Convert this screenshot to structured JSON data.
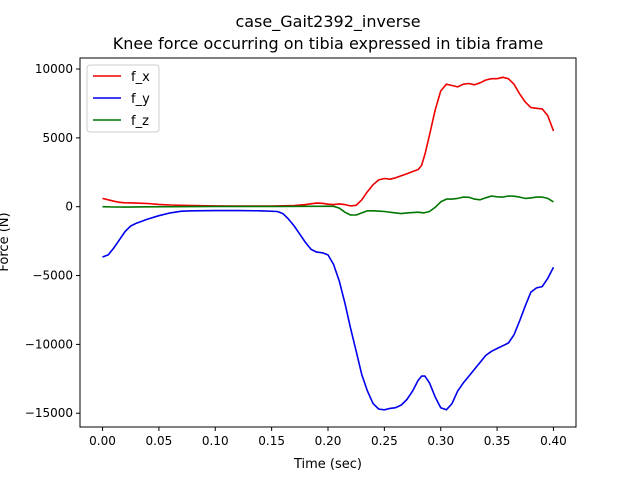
{
  "chart_data": {
    "type": "line",
    "title": "case_Gait2392_inverse",
    "subtitle": "Knee force occurring on tibia expressed in tibia frame",
    "xlabel": "Time (sec)",
    "ylabel": "Force (N)",
    "xlim": [
      -0.02,
      0.42
    ],
    "ylim": [
      -16000,
      10800
    ],
    "xticks": [
      0.0,
      0.05,
      0.1,
      0.15,
      0.2,
      0.25,
      0.3,
      0.35,
      0.4
    ],
    "xtick_labels": [
      "0.00",
      "0.05",
      "0.10",
      "0.15",
      "0.20",
      "0.25",
      "0.30",
      "0.35",
      "0.40"
    ],
    "yticks": [
      -15000,
      -10000,
      -5000,
      0,
      5000,
      10000
    ],
    "ytick_labels": [
      "−15000",
      "−10000",
      "−5000",
      "0",
      "5000",
      "10000"
    ],
    "grid": false,
    "legend_position": "top-left",
    "series": [
      {
        "name": "f_x",
        "color": "#ee0000",
        "points": [
          [
            0.0,
            600
          ],
          [
            0.005,
            500
          ],
          [
            0.01,
            400
          ],
          [
            0.015,
            320
          ],
          [
            0.02,
            280
          ],
          [
            0.03,
            260
          ],
          [
            0.04,
            230
          ],
          [
            0.05,
            170
          ],
          [
            0.06,
            120
          ],
          [
            0.08,
            80
          ],
          [
            0.1,
            60
          ],
          [
            0.12,
            50
          ],
          [
            0.15,
            50
          ],
          [
            0.17,
            80
          ],
          [
            0.18,
            150
          ],
          [
            0.19,
            260
          ],
          [
            0.195,
            250
          ],
          [
            0.2,
            180
          ],
          [
            0.205,
            150
          ],
          [
            0.21,
            200
          ],
          [
            0.215,
            150
          ],
          [
            0.22,
            60
          ],
          [
            0.225,
            100
          ],
          [
            0.23,
            500
          ],
          [
            0.235,
            1100
          ],
          [
            0.24,
            1600
          ],
          [
            0.245,
            1950
          ],
          [
            0.25,
            2050
          ],
          [
            0.255,
            2000
          ],
          [
            0.26,
            2100
          ],
          [
            0.265,
            2250
          ],
          [
            0.27,
            2400
          ],
          [
            0.275,
            2550
          ],
          [
            0.28,
            2700
          ],
          [
            0.283,
            3000
          ],
          [
            0.286,
            3800
          ],
          [
            0.29,
            5200
          ],
          [
            0.295,
            7000
          ],
          [
            0.3,
            8400
          ],
          [
            0.305,
            8900
          ],
          [
            0.31,
            8800
          ],
          [
            0.315,
            8700
          ],
          [
            0.32,
            8900
          ],
          [
            0.325,
            8950
          ],
          [
            0.33,
            8850
          ],
          [
            0.335,
            9000
          ],
          [
            0.34,
            9200
          ],
          [
            0.345,
            9300
          ],
          [
            0.35,
            9300
          ],
          [
            0.355,
            9400
          ],
          [
            0.36,
            9300
          ],
          [
            0.365,
            8900
          ],
          [
            0.37,
            8200
          ],
          [
            0.375,
            7600
          ],
          [
            0.38,
            7200
          ],
          [
            0.385,
            7150
          ],
          [
            0.39,
            7100
          ],
          [
            0.395,
            6600
          ],
          [
            0.4,
            5500
          ]
        ]
      },
      {
        "name": "f_y",
        "color": "#0000ee",
        "points": [
          [
            0.0,
            -3650
          ],
          [
            0.005,
            -3500
          ],
          [
            0.01,
            -3000
          ],
          [
            0.015,
            -2400
          ],
          [
            0.02,
            -1800
          ],
          [
            0.025,
            -1400
          ],
          [
            0.03,
            -1200
          ],
          [
            0.04,
            -900
          ],
          [
            0.05,
            -650
          ],
          [
            0.06,
            -450
          ],
          [
            0.07,
            -330
          ],
          [
            0.08,
            -300
          ],
          [
            0.1,
            -280
          ],
          [
            0.12,
            -280
          ],
          [
            0.14,
            -300
          ],
          [
            0.155,
            -350
          ],
          [
            0.16,
            -500
          ],
          [
            0.165,
            -900
          ],
          [
            0.17,
            -1400
          ],
          [
            0.175,
            -2000
          ],
          [
            0.18,
            -2600
          ],
          [
            0.185,
            -3100
          ],
          [
            0.19,
            -3300
          ],
          [
            0.195,
            -3350
          ],
          [
            0.2,
            -3500
          ],
          [
            0.205,
            -4200
          ],
          [
            0.21,
            -5400
          ],
          [
            0.215,
            -7000
          ],
          [
            0.22,
            -8800
          ],
          [
            0.225,
            -10500
          ],
          [
            0.23,
            -12200
          ],
          [
            0.235,
            -13400
          ],
          [
            0.24,
            -14300
          ],
          [
            0.245,
            -14700
          ],
          [
            0.25,
            -14750
          ],
          [
            0.255,
            -14650
          ],
          [
            0.26,
            -14600
          ],
          [
            0.265,
            -14400
          ],
          [
            0.27,
            -14000
          ],
          [
            0.275,
            -13400
          ],
          [
            0.28,
            -12600
          ],
          [
            0.283,
            -12300
          ],
          [
            0.286,
            -12300
          ],
          [
            0.29,
            -12800
          ],
          [
            0.295,
            -13800
          ],
          [
            0.3,
            -14600
          ],
          [
            0.305,
            -14750
          ],
          [
            0.31,
            -14300
          ],
          [
            0.315,
            -13400
          ],
          [
            0.32,
            -12800
          ],
          [
            0.325,
            -12300
          ],
          [
            0.33,
            -11800
          ],
          [
            0.335,
            -11300
          ],
          [
            0.34,
            -10800
          ],
          [
            0.345,
            -10500
          ],
          [
            0.35,
            -10300
          ],
          [
            0.355,
            -10100
          ],
          [
            0.36,
            -9900
          ],
          [
            0.365,
            -9300
          ],
          [
            0.37,
            -8300
          ],
          [
            0.375,
            -7200
          ],
          [
            0.38,
            -6200
          ],
          [
            0.385,
            -5900
          ],
          [
            0.39,
            -5800
          ],
          [
            0.395,
            -5200
          ],
          [
            0.4,
            -4400
          ]
        ]
      },
      {
        "name": "f_z",
        "color": "#007700",
        "points": [
          [
            0.0,
            0
          ],
          [
            0.01,
            -20
          ],
          [
            0.02,
            -30
          ],
          [
            0.04,
            -10
          ],
          [
            0.06,
            0
          ],
          [
            0.08,
            10
          ],
          [
            0.1,
            20
          ],
          [
            0.12,
            20
          ],
          [
            0.14,
            20
          ],
          [
            0.16,
            20
          ],
          [
            0.18,
            30
          ],
          [
            0.19,
            30
          ],
          [
            0.2,
            40
          ],
          [
            0.205,
            30
          ],
          [
            0.21,
            -100
          ],
          [
            0.215,
            -400
          ],
          [
            0.22,
            -600
          ],
          [
            0.225,
            -600
          ],
          [
            0.23,
            -450
          ],
          [
            0.235,
            -300
          ],
          [
            0.24,
            -300
          ],
          [
            0.25,
            -350
          ],
          [
            0.26,
            -450
          ],
          [
            0.265,
            -500
          ],
          [
            0.27,
            -450
          ],
          [
            0.28,
            -400
          ],
          [
            0.285,
            -450
          ],
          [
            0.29,
            -350
          ],
          [
            0.295,
            -50
          ],
          [
            0.3,
            350
          ],
          [
            0.305,
            550
          ],
          [
            0.31,
            550
          ],
          [
            0.315,
            600
          ],
          [
            0.32,
            700
          ],
          [
            0.325,
            680
          ],
          [
            0.33,
            550
          ],
          [
            0.335,
            500
          ],
          [
            0.34,
            650
          ],
          [
            0.345,
            780
          ],
          [
            0.35,
            720
          ],
          [
            0.355,
            700
          ],
          [
            0.36,
            780
          ],
          [
            0.365,
            760
          ],
          [
            0.37,
            700
          ],
          [
            0.375,
            600
          ],
          [
            0.38,
            640
          ],
          [
            0.385,
            700
          ],
          [
            0.39,
            700
          ],
          [
            0.395,
            600
          ],
          [
            0.4,
            350
          ]
        ]
      }
    ]
  }
}
